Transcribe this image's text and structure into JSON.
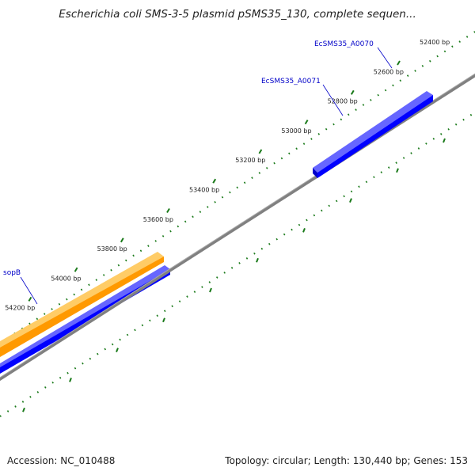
{
  "title": "Escherichia coli SMS-3-5 plasmid pSMS35_130, complete sequen...",
  "footer": {
    "accession": "Accession: NC_010488",
    "topology": "Topology: circular; Length: 130,440 bp; Genes: 153"
  },
  "colors": {
    "backbone": "#808080",
    "tick": "#1a7a1a",
    "gene_forward": "#0000ff",
    "gene_highlight": "#ff9900",
    "gene_label": "#0000c8"
  },
  "ticks": [
    {
      "bp": 52400,
      "label": "52400 bp"
    },
    {
      "bp": 52600,
      "label": "52600 bp"
    },
    {
      "bp": 52800,
      "label": "52800 bp"
    },
    {
      "bp": 53000,
      "label": "53000 bp"
    },
    {
      "bp": 53200,
      "label": "53200 bp"
    },
    {
      "bp": 53400,
      "label": "53400 bp"
    },
    {
      "bp": 53600,
      "label": "53600 bp"
    },
    {
      "bp": 53800,
      "label": "53800 bp"
    },
    {
      "bp": 54000,
      "label": "54000 bp"
    },
    {
      "bp": 54200,
      "label": "54200 bp"
    }
  ],
  "genes": [
    {
      "name": "EcSMS35_A0070",
      "labeled": true
    },
    {
      "name": "EcSMS35_A0071",
      "labeled": true
    },
    {
      "name": "sopB",
      "labeled": true
    }
  ]
}
